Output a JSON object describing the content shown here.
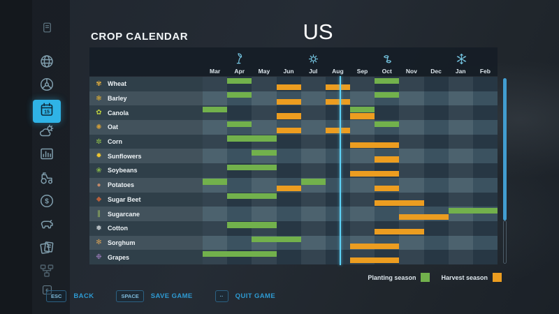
{
  "header": {
    "title": "CROP CALENDAR",
    "map_name": "US"
  },
  "sidebar": {
    "items": [
      {
        "icon": "notebook-icon",
        "active": false,
        "size": "small",
        "dim": false
      },
      {
        "icon": "map-icon",
        "active": false,
        "size": "normal",
        "dim": false
      },
      {
        "icon": "vehicle-icon",
        "active": false,
        "size": "normal",
        "dim": false
      },
      {
        "icon": "calendar-icon",
        "active": true,
        "size": "normal",
        "dim": false,
        "day_number": "15"
      },
      {
        "icon": "weather-icon",
        "active": false,
        "size": "normal",
        "dim": false
      },
      {
        "icon": "statistics-icon",
        "active": false,
        "size": "normal",
        "dim": false
      },
      {
        "icon": "tractor-icon",
        "active": false,
        "size": "normal",
        "dim": false
      },
      {
        "icon": "finances-icon",
        "active": false,
        "size": "normal",
        "dim": false
      },
      {
        "icon": "animals-icon",
        "active": false,
        "size": "normal",
        "dim": false
      },
      {
        "icon": "contracts-icon",
        "active": false,
        "size": "normal",
        "dim": false
      },
      {
        "icon": "production-icon",
        "active": false,
        "size": "normal",
        "dim": true
      },
      {
        "icon": "currency-icon",
        "active": false,
        "size": "small",
        "dim": false
      }
    ]
  },
  "seasons": [
    {
      "icon": "spring-sprout-icon"
    },
    {
      "icon": "summer-sun-icon"
    },
    {
      "icon": "autumn-leaves-icon"
    },
    {
      "icon": "winter-snowflake-icon"
    }
  ],
  "legend": {
    "planting_label": "Planting season",
    "harvest_label": "Harvest season",
    "planting_color": "#72b14c",
    "harvest_color": "#ec9d20"
  },
  "chart_data": {
    "type": "heatmap",
    "title": "CROP CALENDAR",
    "region": "US",
    "months": [
      "Mar",
      "Apr",
      "May",
      "Jun",
      "Jul",
      "Aug",
      "Sep",
      "Oct",
      "Nov",
      "Dec",
      "Jan",
      "Feb"
    ],
    "legend_entries": [
      "Planting season",
      "Harvest season"
    ],
    "current_day": {
      "month": "Aug",
      "fraction": 0.57
    },
    "crops": [
      {
        "name": "Wheat",
        "glyph": "✾",
        "color": "#d9a93f",
        "planting": [
          "Apr",
          "Oct"
        ],
        "harvest": [
          "Jun",
          "Aug"
        ]
      },
      {
        "name": "Barley",
        "glyph": "❃",
        "color": "#c9a23a",
        "planting": [
          "Apr",
          "Oct"
        ],
        "harvest": [
          "Jun",
          "Aug"
        ]
      },
      {
        "name": "Canola",
        "glyph": "✿",
        "color": "#b9cc3e",
        "planting": [
          "Mar",
          "Sep"
        ],
        "harvest": [
          "Jun",
          "Sep"
        ]
      },
      {
        "name": "Oat",
        "glyph": "✺",
        "color": "#cf9d3a",
        "planting": [
          "Apr",
          "Oct"
        ],
        "harvest": [
          "Jun",
          "Aug"
        ]
      },
      {
        "name": "Corn",
        "glyph": "✼",
        "color": "#8fbf4a",
        "planting": [
          "Apr",
          "May"
        ],
        "harvest": [
          "Sep",
          "Oct"
        ]
      },
      {
        "name": "Sunflowers",
        "glyph": "✹",
        "color": "#eec531",
        "planting": [
          "May"
        ],
        "harvest": [
          "Oct"
        ]
      },
      {
        "name": "Soybeans",
        "glyph": "❀",
        "color": "#83b04a",
        "planting": [
          "Apr",
          "May"
        ],
        "harvest": [
          "Sep",
          "Oct"
        ]
      },
      {
        "name": "Potatoes",
        "glyph": "●",
        "color": "#c2896a",
        "planting": [
          "Mar",
          "Jul"
        ],
        "harvest": [
          "Jun",
          "Oct"
        ]
      },
      {
        "name": "Sugar Beet",
        "glyph": "◆",
        "color": "#b55f3b",
        "planting": [
          "Apr",
          "May"
        ],
        "harvest": [
          "Oct",
          "Nov"
        ]
      },
      {
        "name": "Sugarcane",
        "glyph": "∥",
        "color": "#a6c45f",
        "planting": [
          "Jan",
          "Feb"
        ],
        "harvest": [
          "Nov",
          "Dec"
        ]
      },
      {
        "name": "Cotton",
        "glyph": "❅",
        "color": "#e8edf0",
        "planting": [
          "Apr",
          "May"
        ],
        "harvest": [
          "Oct",
          "Nov"
        ]
      },
      {
        "name": "Sorghum",
        "glyph": "✻",
        "color": "#cf9d56",
        "planting": [
          "May",
          "Jun"
        ],
        "harvest": [
          "Sep",
          "Oct"
        ]
      },
      {
        "name": "Grapes",
        "glyph": "❉",
        "color": "#a07fc0",
        "planting": [
          "Mar",
          "Apr",
          "May"
        ],
        "harvest": [
          "Sep",
          "Oct"
        ]
      }
    ]
  },
  "footer": {
    "buttons": [
      {
        "key": "ESC",
        "label": "BACK"
      },
      {
        "key": "SPACE",
        "label": "SAVE GAME"
      },
      {
        "key": "··",
        "label": "QUIT GAME"
      }
    ]
  }
}
